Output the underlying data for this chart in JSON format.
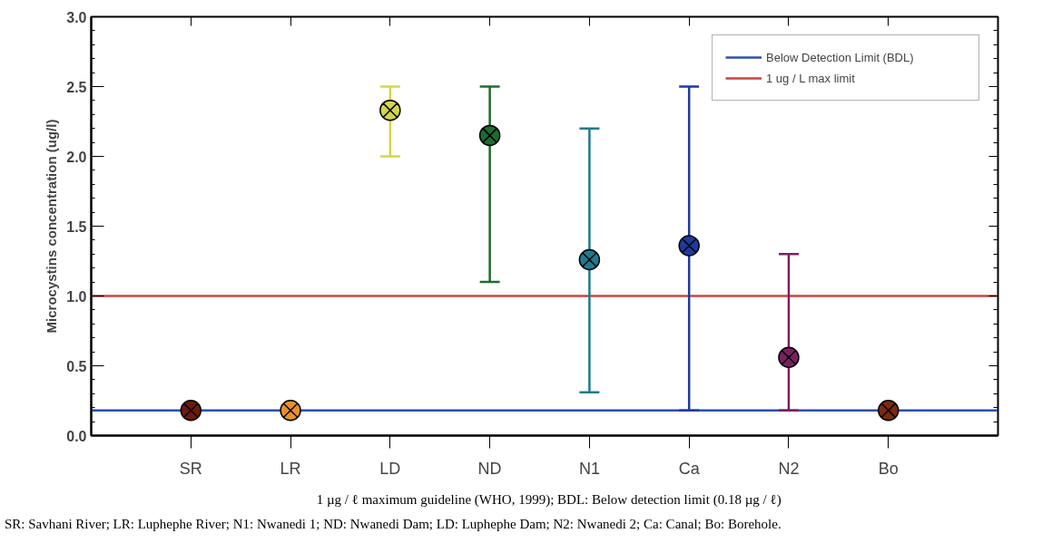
{
  "chart_data": {
    "type": "scatter",
    "ylabel": "Microcystins concentration (ug/l)",
    "categories": [
      "SR",
      "LR",
      "LD",
      "ND",
      "N1",
      "Ca",
      "N2",
      "Bo"
    ],
    "values": [
      0.18,
      0.18,
      2.33,
      2.15,
      1.26,
      1.36,
      0.56,
      0.18
    ],
    "errors": [
      null,
      null,
      [
        2.0,
        2.5
      ],
      [
        1.1,
        2.5
      ],
      [
        0.31,
        2.2
      ],
      [
        0.18,
        2.5
      ],
      [
        0.18,
        1.3
      ],
      null
    ],
    "colors": [
      "#6b1a10",
      "#e8902e",
      "#d4d44a",
      "#1f6b2e",
      "#1f7a8f",
      "#1f3a9f",
      "#7a2060",
      "#7a2a10"
    ],
    "marker": "circle",
    "ylim": [
      0,
      3.0
    ],
    "yticks": [
      {
        "value": 0,
        "label": "0.0"
      },
      {
        "value": 0.5,
        "label": "0.5"
      },
      {
        "value": 1,
        "label": "1.0"
      },
      {
        "value": 1.5,
        "label": "1.5"
      },
      {
        "value": 2,
        "label": "2.0"
      },
      {
        "value": 2.5,
        "label": "2.5"
      },
      {
        "value": 3,
        "label": "3.0"
      }
    ],
    "ref_lines": [
      {
        "axis": "y",
        "value": 0.18,
        "label": "Below Detection Limit (BDL)",
        "color": "#2b4fb0"
      },
      {
        "axis": "y",
        "value": 1.0,
        "label": "1 ug / L max limit",
        "color": "#c8443c"
      }
    ],
    "legend": "top right",
    "grid": false,
    "annotations": [
      "1 µg / ℓ maximum guideline (WHO, 1999); BDL: Below detection limit (0.18 µg / ℓ)",
      "SR: Savhani River; LR: Luphephe River; N1: Nwanedi 1; ND: Nwanedi Dam; LD: Luphephe Dam; N2: Nwanedi 2; Ca: Canal; Bo: Borehole."
    ]
  }
}
